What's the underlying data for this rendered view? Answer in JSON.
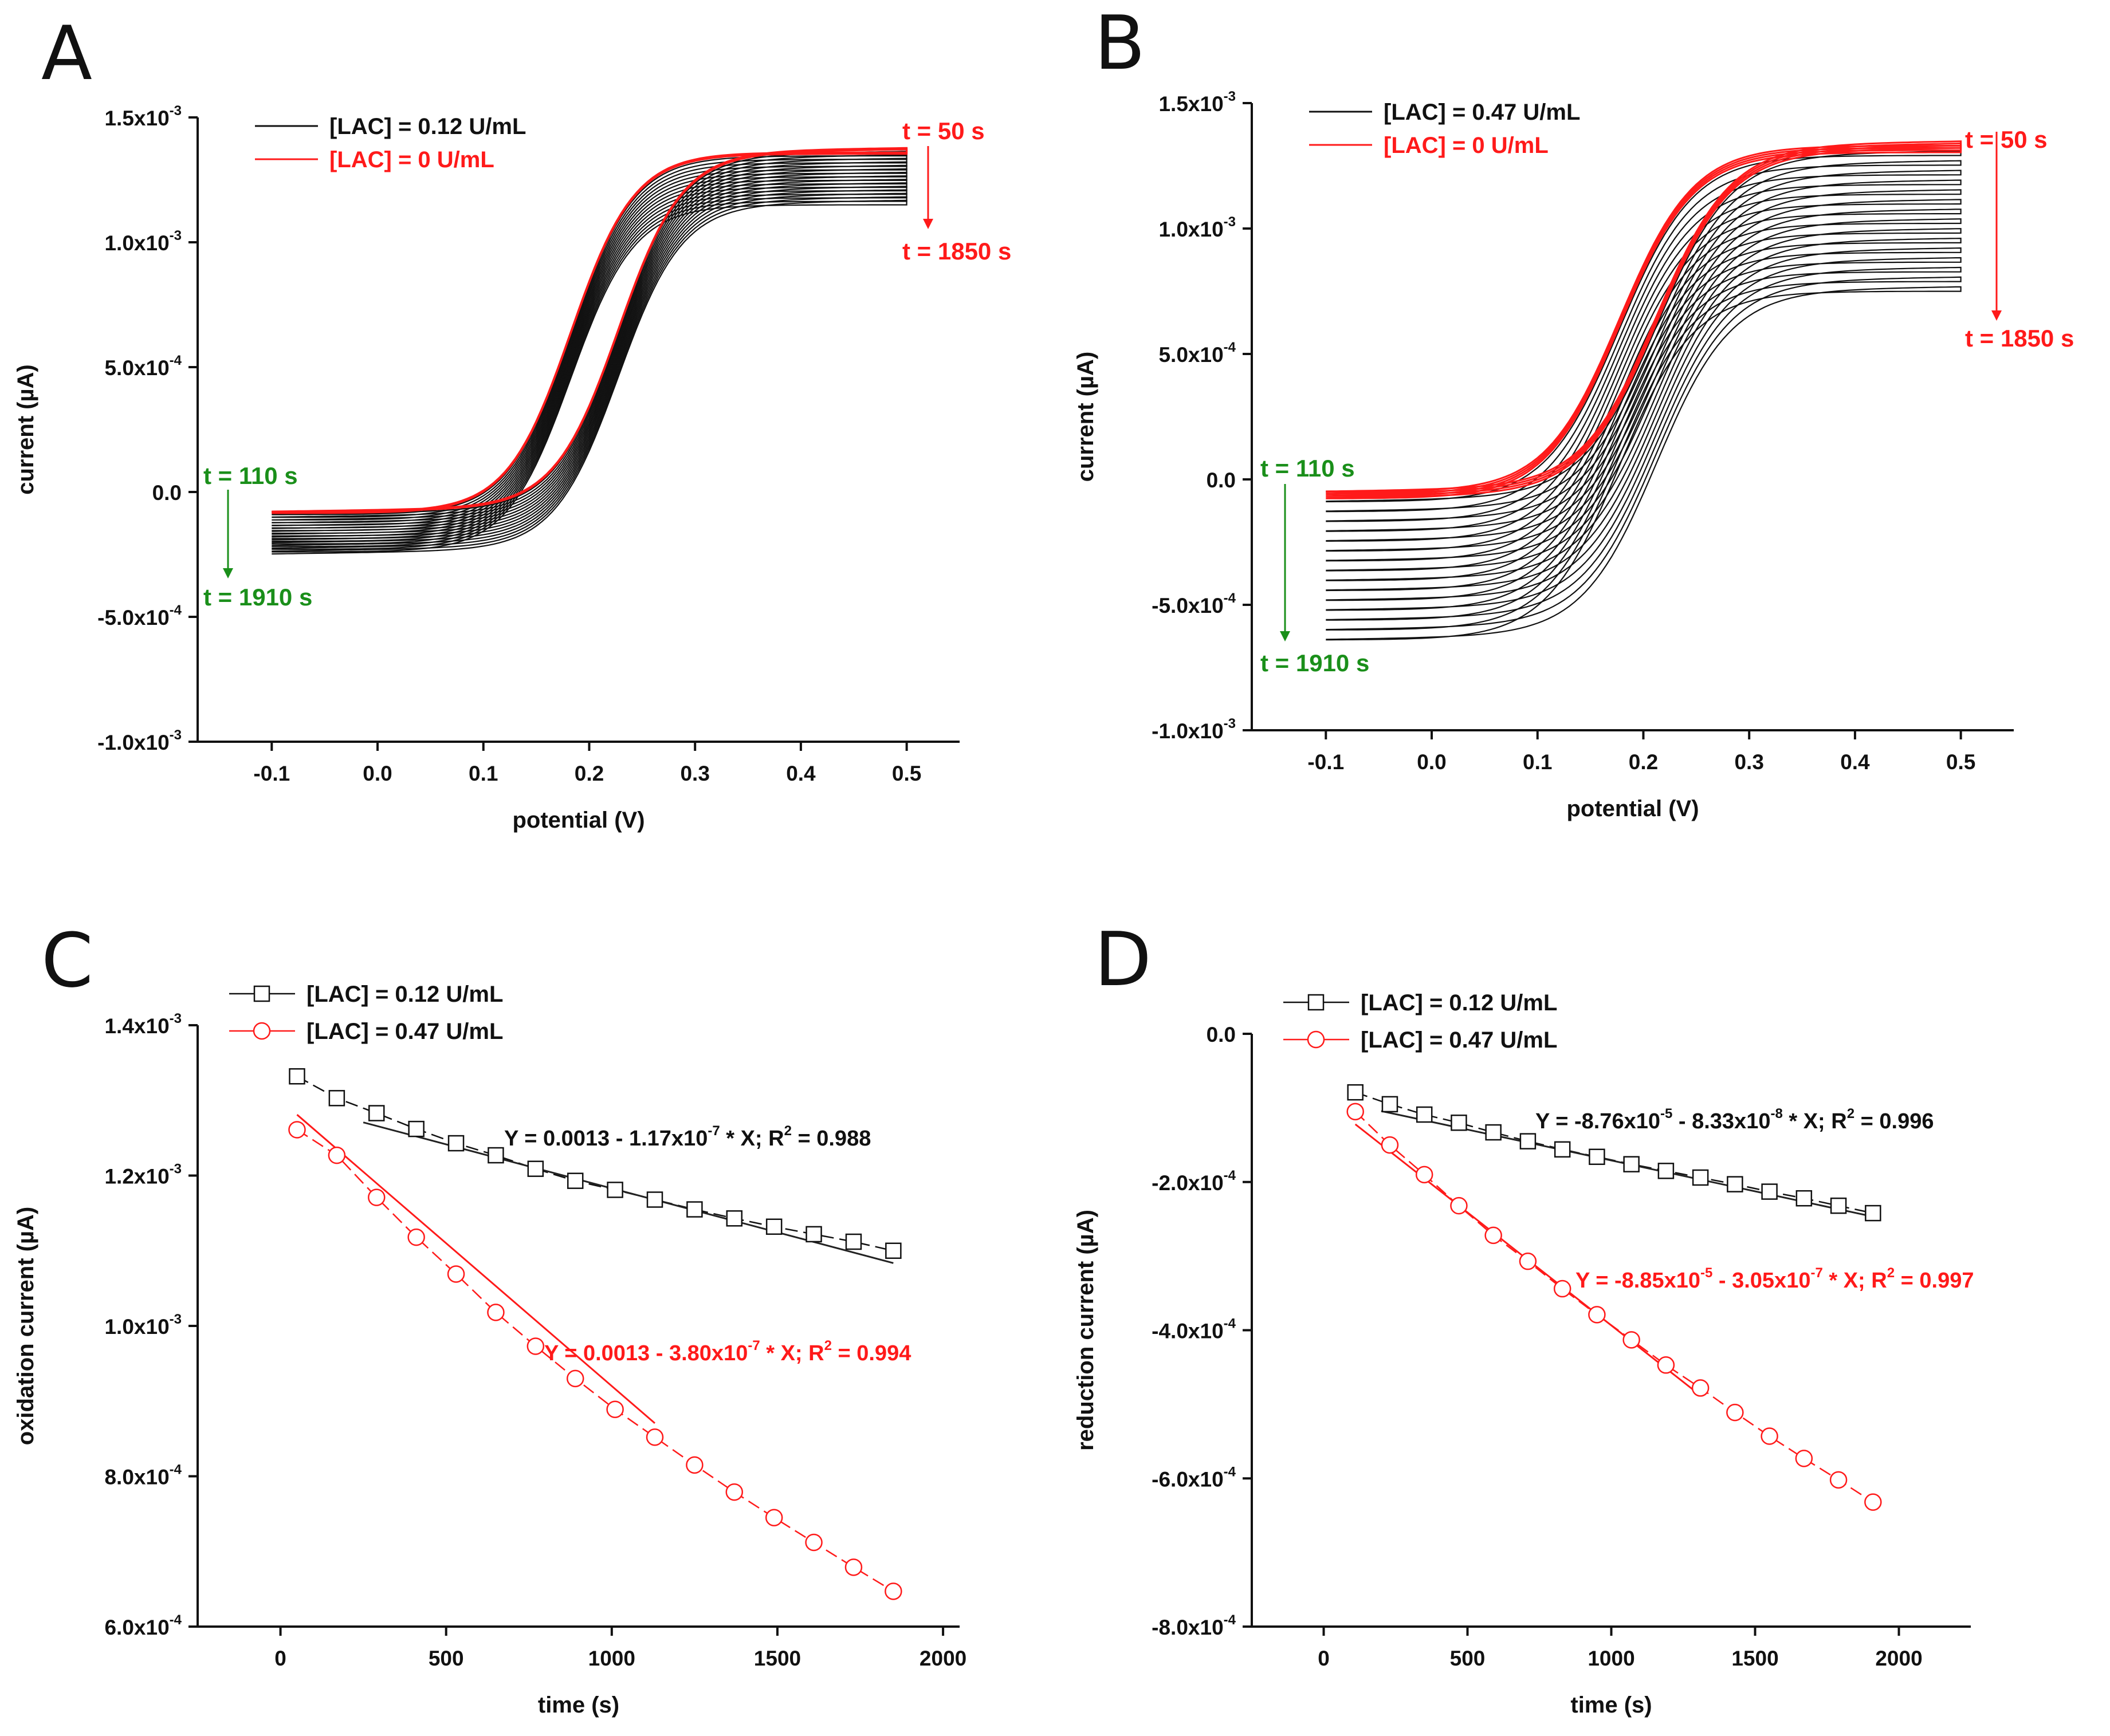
{
  "colors": {
    "black": "#111111",
    "red": "#ff1a1a",
    "green": "#1a8f1a",
    "fitblack": "#222222"
  },
  "chart_data": [
    {
      "panel_label": "A",
      "type": "line",
      "title": "",
      "xlabel": "potential (V)",
      "ylabel": "current (µA)",
      "xlim": [
        -0.17,
        0.55
      ],
      "ylim": [
        -0.001,
        0.0015
      ],
      "xticks": [
        -0.1,
        0.0,
        0.1,
        0.2,
        0.3,
        0.4,
        0.5
      ],
      "xtick_labels": [
        "-0.1",
        "0.0",
        "0.1",
        "0.2",
        "0.3",
        "0.4",
        "0.5"
      ],
      "yticks": [
        -0.001,
        -0.0005,
        0.0,
        0.0005,
        0.001,
        0.0015
      ],
      "ytick_labels": [
        {
          "base": "-1.0x10",
          "exp": "-3"
        },
        {
          "base": "-5.0x10",
          "exp": "-4"
        },
        {
          "base": "0.0",
          "exp": ""
        },
        {
          "base": "5.0x10",
          "exp": "-4"
        },
        {
          "base": "1.0x10",
          "exp": "-3"
        },
        {
          "base": "1.5x10",
          "exp": "-3"
        }
      ],
      "legend": [
        {
          "label": "[LAC] = 0.12 U/mL",
          "color": "black"
        },
        {
          "label": "[LAC] = 0 U/mL",
          "color": "red"
        }
      ],
      "annotations": {
        "ox_start": "t = 50 s",
        "ox_end": "t = 1850 s",
        "red_start": "t = 110 s",
        "red_end": "t = 1910 s"
      },
      "cv_model": {
        "cycles": 16,
        "E0": 0.205,
        "width": 0.03,
        "hysteresis": 0.045,
        "forward_start_top": -6e-05,
        "forward_start_bottom": -0.00023,
        "forward_end_top": 0.00136,
        "forward_end_bottom": 0.00115,
        "return_end_top": -8e-05,
        "return_end_bottom": -0.00024,
        "red_cycles": 3
      }
    },
    {
      "panel_label": "B",
      "type": "line",
      "title": "",
      "xlabel": "potential (V)",
      "ylabel": "current (µA)",
      "xlim": [
        -0.17,
        0.55
      ],
      "ylim": [
        -0.001,
        0.0015
      ],
      "xticks": [
        -0.1,
        0.0,
        0.1,
        0.2,
        0.3,
        0.4,
        0.5
      ],
      "xtick_labels": [
        "-0.1",
        "0.0",
        "0.1",
        "0.2",
        "0.3",
        "0.4",
        "0.5"
      ],
      "yticks": [
        -0.001,
        -0.0005,
        0.0,
        0.0005,
        0.001,
        0.0015
      ],
      "ytick_labels": [
        {
          "base": "-1.0x10",
          "exp": "-3"
        },
        {
          "base": "-5.0x10",
          "exp": "-4"
        },
        {
          "base": "0.0",
          "exp": ""
        },
        {
          "base": "5.0x10",
          "exp": "-4"
        },
        {
          "base": "1.0x10",
          "exp": "-3"
        },
        {
          "base": "1.5x10",
          "exp": "-3"
        }
      ],
      "legend": [
        {
          "label": "[LAC] = 0.47 U/mL",
          "color": "black"
        },
        {
          "label": "[LAC] = 0 U/mL",
          "color": "red"
        }
      ],
      "annotations": {
        "ox_start": "t = 50 s",
        "ox_end": "t = 1850 s",
        "red_start": "t = 110 s",
        "red_end": "t = 1910 s"
      },
      "cv_model": {
        "cycles": 16,
        "E0": 0.195,
        "width": 0.035,
        "hysteresis": 0.035,
        "forward_start_top": -3e-05,
        "forward_start_bottom": -0.00062,
        "forward_end_top": 0.00133,
        "forward_end_bottom": 0.00075,
        "return_end_top": -5e-05,
        "return_end_bottom": -0.00064,
        "red_cycles": 4
      }
    },
    {
      "panel_label": "C",
      "type": "scatter",
      "title": "",
      "xlabel": "time (s)",
      "ylabel": "oxidation current (µA)",
      "xlim": [
        -250,
        2050
      ],
      "ylim": [
        0.0006,
        0.0014
      ],
      "xticks": [
        0,
        500,
        1000,
        1500,
        2000
      ],
      "xtick_labels": [
        "0",
        "500",
        "1000",
        "1500",
        "2000"
      ],
      "yticks": [
        0.0006,
        0.0008,
        0.001,
        0.0012,
        0.0014
      ],
      "ytick_labels": [
        {
          "base": "6.0x10",
          "exp": "-4"
        },
        {
          "base": "8.0x10",
          "exp": "-4"
        },
        {
          "base": "1.0x10",
          "exp": "-3"
        },
        {
          "base": "1.2x10",
          "exp": "-3"
        },
        {
          "base": "1.4x10",
          "exp": "-3"
        }
      ],
      "series": [
        {
          "name": "[LAC] = 0.12 U/mL",
          "color": "black",
          "marker": "square",
          "x": [
            50,
            170,
            290,
            410,
            530,
            650,
            770,
            890,
            1010,
            1130,
            1250,
            1370,
            1490,
            1610,
            1730,
            1850
          ],
          "y": [
            0.001332,
            0.001303,
            0.001283,
            0.001262,
            0.001243,
            0.001227,
            0.001209,
            0.001193,
            0.001181,
            0.001168,
            0.001155,
            0.001143,
            0.001132,
            0.001122,
            0.001112,
            0.0011
          ],
          "fit": {
            "intercept": 0.0013,
            "slope": -1.17e-07,
            "x0": 250,
            "x1": 1850
          },
          "equation": {
            "pre": "Y = 0.0013 - 1.17x10",
            "exp1": "-7",
            "mid": " * X; R",
            "exp2": "2",
            "post": " = 0.988"
          }
        },
        {
          "name": "[LAC] = 0.47 U/mL",
          "color": "red",
          "marker": "circle",
          "x": [
            50,
            170,
            290,
            410,
            530,
            650,
            770,
            890,
            1010,
            1130,
            1250,
            1370,
            1490,
            1610,
            1730,
            1850
          ],
          "y": [
            0.001261,
            0.001227,
            0.001171,
            0.001118,
            0.001069,
            0.001018,
            0.000973,
            0.00093,
            0.000889,
            0.000852,
            0.000815,
            0.000779,
            0.000745,
            0.000712,
            0.000679,
            0.000647
          ],
          "fit": {
            "intercept": 0.0013,
            "slope": -3.8e-07,
            "x0": 50,
            "x1": 1130
          },
          "equation": {
            "pre": "Y = 0.0013 - 3.80x10",
            "exp1": "-7",
            "mid": " * X; R",
            "exp2": "2",
            "post": " = 0.994"
          }
        }
      ]
    },
    {
      "panel_label": "D",
      "type": "scatter",
      "title": "",
      "xlabel": "time (s)",
      "ylabel": "reduction current (µA)",
      "xlim": [
        -250,
        2250
      ],
      "ylim": [
        -0.0008,
        0.0
      ],
      "xticks": [
        0,
        500,
        1000,
        1500,
        2000
      ],
      "xtick_labels": [
        "0",
        "500",
        "1000",
        "1500",
        "2000"
      ],
      "yticks": [
        -0.0008,
        -0.0006,
        -0.0004,
        -0.0002,
        0.0
      ],
      "ytick_labels": [
        {
          "base": "-8.0x10",
          "exp": "-4"
        },
        {
          "base": "-6.0x10",
          "exp": "-4"
        },
        {
          "base": "-4.0x10",
          "exp": "-4"
        },
        {
          "base": "-2.0x10",
          "exp": "-4"
        },
        {
          "base": "0.0",
          "exp": ""
        }
      ],
      "series": [
        {
          "name": "[LAC] = 0.12 U/mL",
          "color": "black",
          "marker": "square",
          "x": [
            110,
            230,
            350,
            470,
            590,
            710,
            830,
            950,
            1070,
            1190,
            1310,
            1430,
            1550,
            1670,
            1790,
            1910
          ],
          "y": [
            -7.9e-05,
            -9.5e-05,
            -0.000109,
            -0.00012,
            -0.000133,
            -0.000145,
            -0.000156,
            -0.000166,
            -0.000176,
            -0.000185,
            -0.000194,
            -0.000203,
            -0.000213,
            -0.000222,
            -0.000232,
            -0.000242
          ],
          "fit": {
            "intercept": -8.76e-05,
            "slope": -8.33e-08,
            "x0": 200,
            "x1": 1910
          },
          "equation": {
            "pre": "Y = -8.76x10",
            "exp1": "-5",
            "mid": " - 8.33x10",
            "exp2": "-8",
            "post": " * X; R",
            "exp3": "2",
            "post2": " = 0.996"
          }
        },
        {
          "name": "[LAC] = 0.47 U/mL",
          "color": "red",
          "marker": "circle",
          "x": [
            110,
            230,
            350,
            470,
            590,
            710,
            830,
            950,
            1070,
            1190,
            1310,
            1430,
            1550,
            1670,
            1790,
            1910
          ],
          "y": [
            -0.000105,
            -0.00015,
            -0.00019,
            -0.000232,
            -0.000272,
            -0.000307,
            -0.000344,
            -0.000379,
            -0.000413,
            -0.000447,
            -0.000478,
            -0.000511,
            -0.000543,
            -0.000573,
            -0.000602,
            -0.000632
          ],
          "fit": {
            "intercept": -8.85e-05,
            "slope": -3.05e-07,
            "x0": 110,
            "x1": 1310
          },
          "equation": {
            "pre": "Y = -8.85x10",
            "exp1": "-5",
            "mid": " - 3.05x10",
            "exp2": "-7",
            "post": " * X; R",
            "exp3": "2",
            "post2": " = 0.997"
          }
        }
      ]
    }
  ]
}
